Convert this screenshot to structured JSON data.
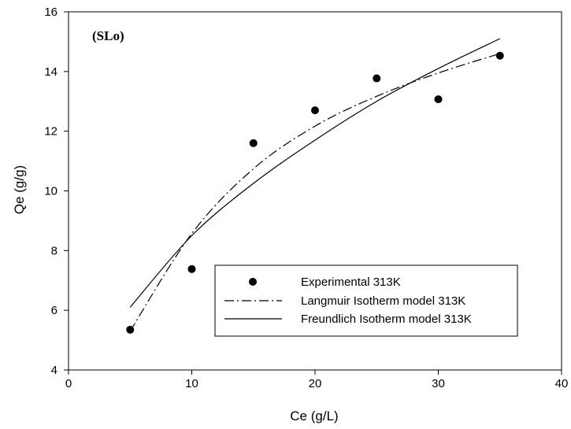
{
  "chart_data": {
    "type": "scatter",
    "xlabel": "Ce (g/L)",
    "ylabel": "Qe (g/g)",
    "xlim": [
      0,
      40
    ],
    "ylim": [
      4,
      16
    ],
    "xticks": [
      0,
      10,
      20,
      30,
      40
    ],
    "yticks": [
      4,
      6,
      8,
      10,
      12,
      14,
      16
    ],
    "grid": false,
    "legend_position": "bottom-right",
    "annotation": "(SLo)",
    "series": [
      {
        "name": "Experimental 313K",
        "style": "markers",
        "x": [
          5,
          10,
          15,
          20,
          25,
          30,
          35
        ],
        "y": [
          5.35,
          7.38,
          11.6,
          12.7,
          13.77,
          13.07,
          14.53
        ]
      },
      {
        "name": "Langmuir Isotherm model 313K",
        "style": "dash-dot line",
        "x": [
          5,
          10,
          15,
          20,
          25,
          30,
          35
        ],
        "y": [
          5.3,
          8.57,
          10.74,
          12.17,
          13.17,
          13.95,
          14.6
        ]
      },
      {
        "name": "Freundlich Isotherm model 313K",
        "style": "solid line",
        "x": [
          5,
          10,
          15,
          20,
          25,
          30,
          35
        ],
        "y": [
          6.1,
          8.5,
          10.25,
          11.7,
          13.0,
          14.1,
          15.1
        ]
      }
    ]
  }
}
